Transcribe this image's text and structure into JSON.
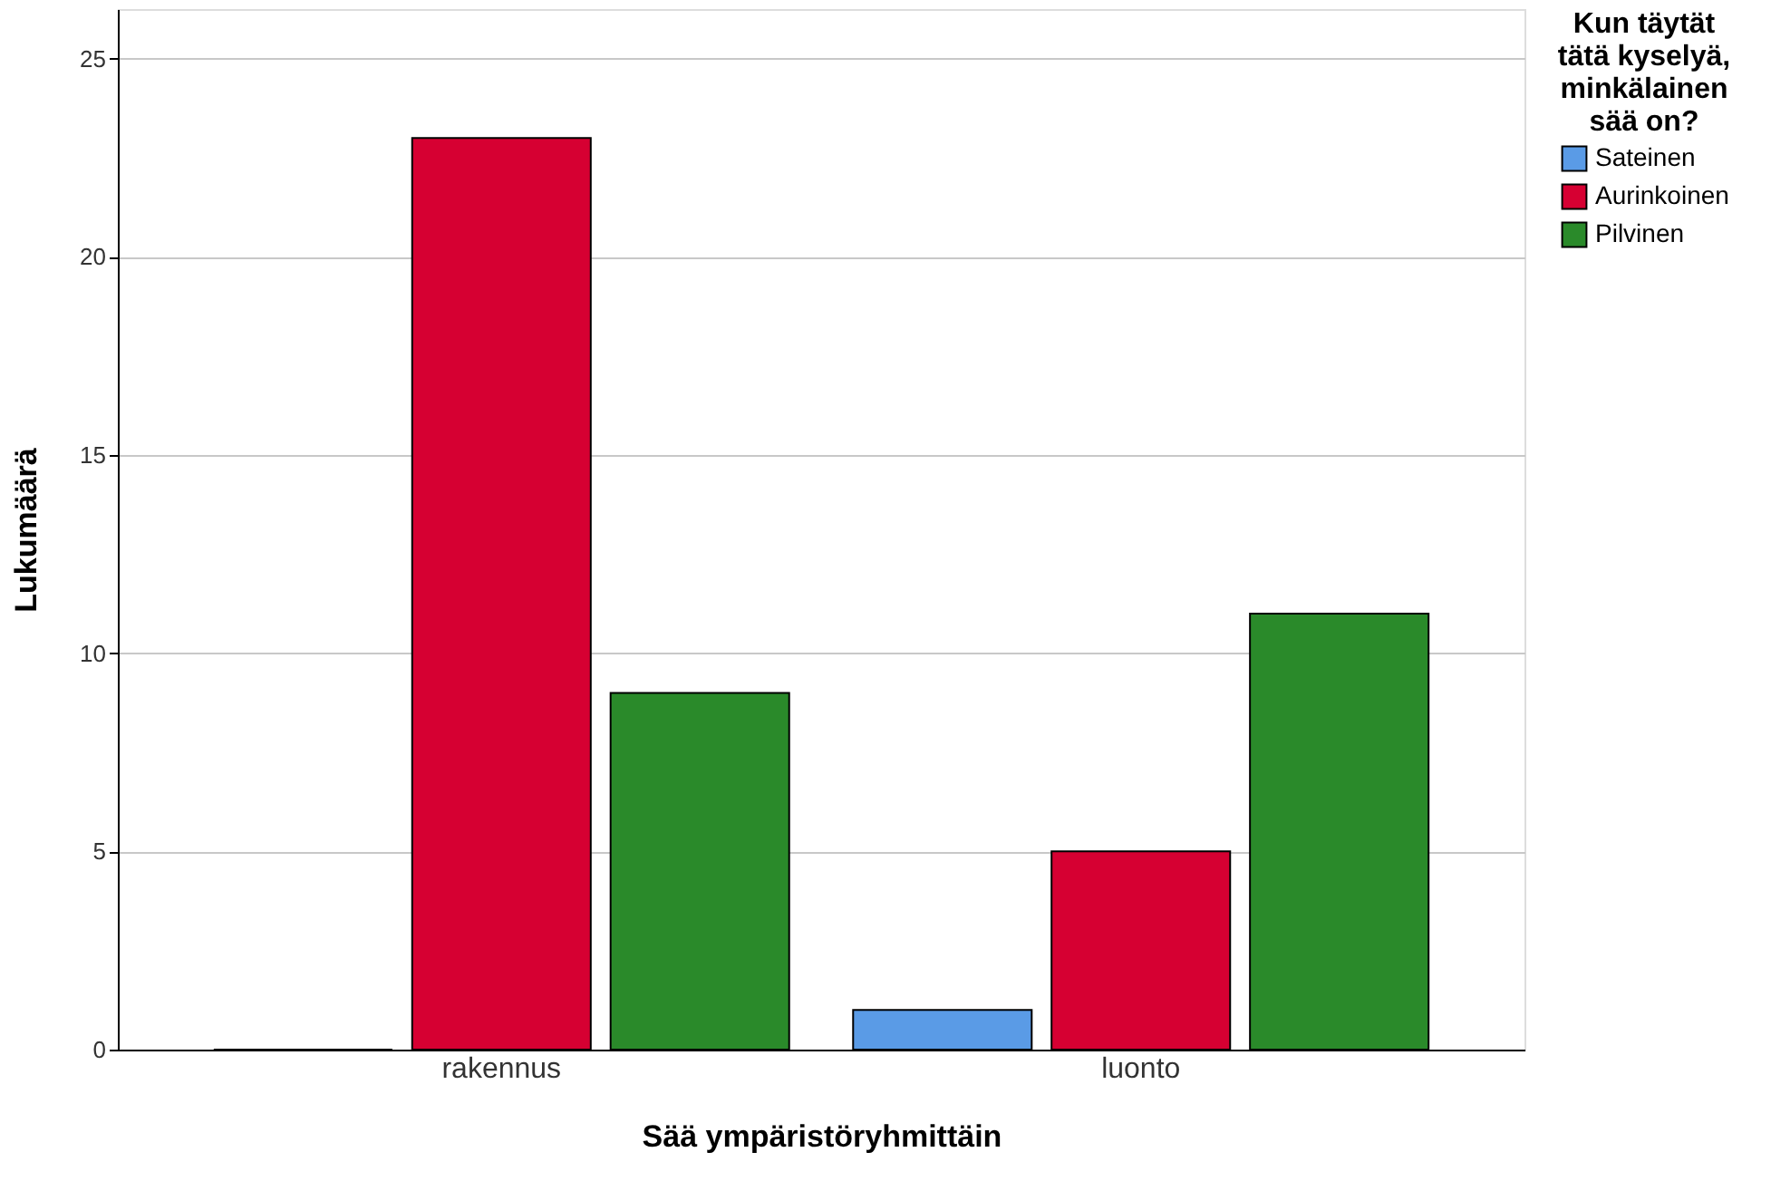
{
  "chart_data": {
    "type": "bar",
    "xlabel": "Sää ympäristöryhmittäin",
    "ylabel": "Lukumäärä",
    "legend_title": "Kun täytät tätä kyselyä, minkälainen sää on?",
    "categories": [
      "rakennus",
      "luonto"
    ],
    "series": [
      {
        "name": "Sateinen",
        "color": "#5a9be6",
        "values": [
          0,
          1
        ]
      },
      {
        "name": "Aurinkoinen",
        "color": "#d60032",
        "values": [
          23,
          5
        ]
      },
      {
        "name": "Pilvinen",
        "color": "#2a8a2a",
        "values": [
          9,
          11
        ]
      }
    ],
    "ylim": [
      0,
      26.25
    ],
    "yticks": [
      0,
      5,
      10,
      15,
      20,
      25
    ],
    "grid": "y",
    "legend": "top right"
  }
}
